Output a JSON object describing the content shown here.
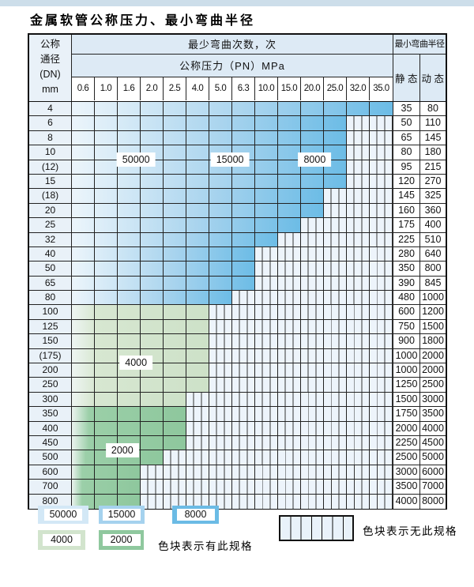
{
  "page": {
    "title": "金属软管公称压力、最小弯曲半径"
  },
  "table": {
    "header": {
      "dn_lines": [
        "公称",
        "通径",
        "(DN)",
        "mm"
      ],
      "bend_cycles_label": "最少弯曲次数，次",
      "pressure_label": "公称压力（PN）MPa",
      "pressure_columns": [
        "0.6",
        "1.0",
        "1.6",
        "2.0",
        "2.5",
        "4.0",
        "5.0",
        "6.3",
        "10.0",
        "15.0",
        "20.0",
        "25.0",
        "32.0",
        "35.0"
      ],
      "radius_label": "最小弯曲半径",
      "static_label": "静 态",
      "dynamic_label": "动 态"
    },
    "rows": [
      {
        "dn": "4",
        "colored_cols": 14,
        "zone": "blue",
        "static": "35",
        "dynamic": "80"
      },
      {
        "dn": "6",
        "colored_cols": 12,
        "zone": "blue",
        "static": "50",
        "dynamic": "110"
      },
      {
        "dn": "8",
        "colored_cols": 12,
        "zone": "blue",
        "static": "65",
        "dynamic": "145"
      },
      {
        "dn": "10",
        "colored_cols": 12,
        "zone": "blue",
        "static": "80",
        "dynamic": "180"
      },
      {
        "dn": "(12)",
        "colored_cols": 12,
        "zone": "blue",
        "static": "95",
        "dynamic": "215"
      },
      {
        "dn": "15",
        "colored_cols": 12,
        "zone": "blue",
        "static": "120",
        "dynamic": "270"
      },
      {
        "dn": "(18)",
        "colored_cols": 11,
        "zone": "blue",
        "static": "145",
        "dynamic": "325"
      },
      {
        "dn": "20",
        "colored_cols": 11,
        "zone": "blue",
        "static": "160",
        "dynamic": "360"
      },
      {
        "dn": "25",
        "colored_cols": 10,
        "zone": "blue",
        "static": "175",
        "dynamic": "400"
      },
      {
        "dn": "32",
        "colored_cols": 9,
        "zone": "blue",
        "static": "225",
        "dynamic": "510"
      },
      {
        "dn": "40",
        "colored_cols": 8,
        "zone": "blue",
        "static": "280",
        "dynamic": "640"
      },
      {
        "dn": "50",
        "colored_cols": 8,
        "zone": "blue",
        "static": "350",
        "dynamic": "800"
      },
      {
        "dn": "65",
        "colored_cols": 8,
        "zone": "blue",
        "static": "390",
        "dynamic": "845"
      },
      {
        "dn": "80",
        "colored_cols": 7,
        "zone": "blue",
        "static": "480",
        "dynamic": "1000"
      },
      {
        "dn": "100",
        "colored_cols": 6,
        "zone": "green-light",
        "static": "600",
        "dynamic": "1200"
      },
      {
        "dn": "125",
        "colored_cols": 6,
        "zone": "green-light",
        "static": "750",
        "dynamic": "1500"
      },
      {
        "dn": "150",
        "colored_cols": 6,
        "zone": "green-light",
        "static": "900",
        "dynamic": "1800"
      },
      {
        "dn": "(175)",
        "colored_cols": 6,
        "zone": "green-light",
        "static": "1000",
        "dynamic": "2000"
      },
      {
        "dn": "200",
        "colored_cols": 6,
        "zone": "green-light",
        "static": "1000",
        "dynamic": "2000"
      },
      {
        "dn": "250",
        "colored_cols": 6,
        "zone": "green-light",
        "static": "1250",
        "dynamic": "2500"
      },
      {
        "dn": "300",
        "colored_cols": 5,
        "zone": "green-light",
        "static": "1500",
        "dynamic": "3000"
      },
      {
        "dn": "350",
        "colored_cols": 5,
        "zone": "green-dark",
        "static": "1750",
        "dynamic": "3500"
      },
      {
        "dn": "400",
        "colored_cols": 5,
        "zone": "green-dark",
        "static": "2000",
        "dynamic": "4000"
      },
      {
        "dn": "450",
        "colored_cols": 5,
        "zone": "green-dark",
        "static": "2250",
        "dynamic": "4500"
      },
      {
        "dn": "500",
        "colored_cols": 4,
        "zone": "green-dark",
        "static": "2500",
        "dynamic": "5000"
      },
      {
        "dn": "600",
        "colored_cols": 3,
        "zone": "green-dark",
        "static": "3000",
        "dynamic": "6000"
      },
      {
        "dn": "700",
        "colored_cols": 3,
        "zone": "green-dark",
        "static": "3500",
        "dynamic": "7000"
      },
      {
        "dn": "800",
        "colored_cols": 3,
        "zone": "green-dark",
        "static": "4000",
        "dynamic": "8000"
      }
    ],
    "zone_labels": [
      {
        "text": "50000",
        "col_u": 2.8,
        "row_u": 4
      },
      {
        "text": "15000",
        "col_u": 6.9,
        "row_u": 4
      },
      {
        "text": "8000",
        "col_u": 10.6,
        "row_u": 4
      },
      {
        "text": "4000",
        "col_u": 2.8,
        "row_u": 18
      },
      {
        "text": "2000",
        "col_u": 2.2,
        "row_u": 24
      }
    ]
  },
  "legend": {
    "items": [
      {
        "label": "50000",
        "color": "#d3e8f6"
      },
      {
        "label": "15000",
        "color": "#a5d2ee"
      },
      {
        "label": "8000",
        "color": "#6bbbe5"
      },
      {
        "label": "4000",
        "color": "#d2e4cd"
      },
      {
        "label": "2000",
        "color": "#8fc89e"
      }
    ],
    "has_spec_text": "色块表示有此规格",
    "no_spec_text": "色块表示无此规格"
  },
  "colors": {
    "blue_light": "#ecf5fb",
    "blue_mid": "#a9d4ee",
    "blue_dark": "#6cbce6",
    "green_light": "#cde1c8",
    "green_dark": "#8ec79d",
    "hatch_bg": "#edf4fb",
    "header_bg": "#ddeaf5",
    "grid": "#222222"
  }
}
